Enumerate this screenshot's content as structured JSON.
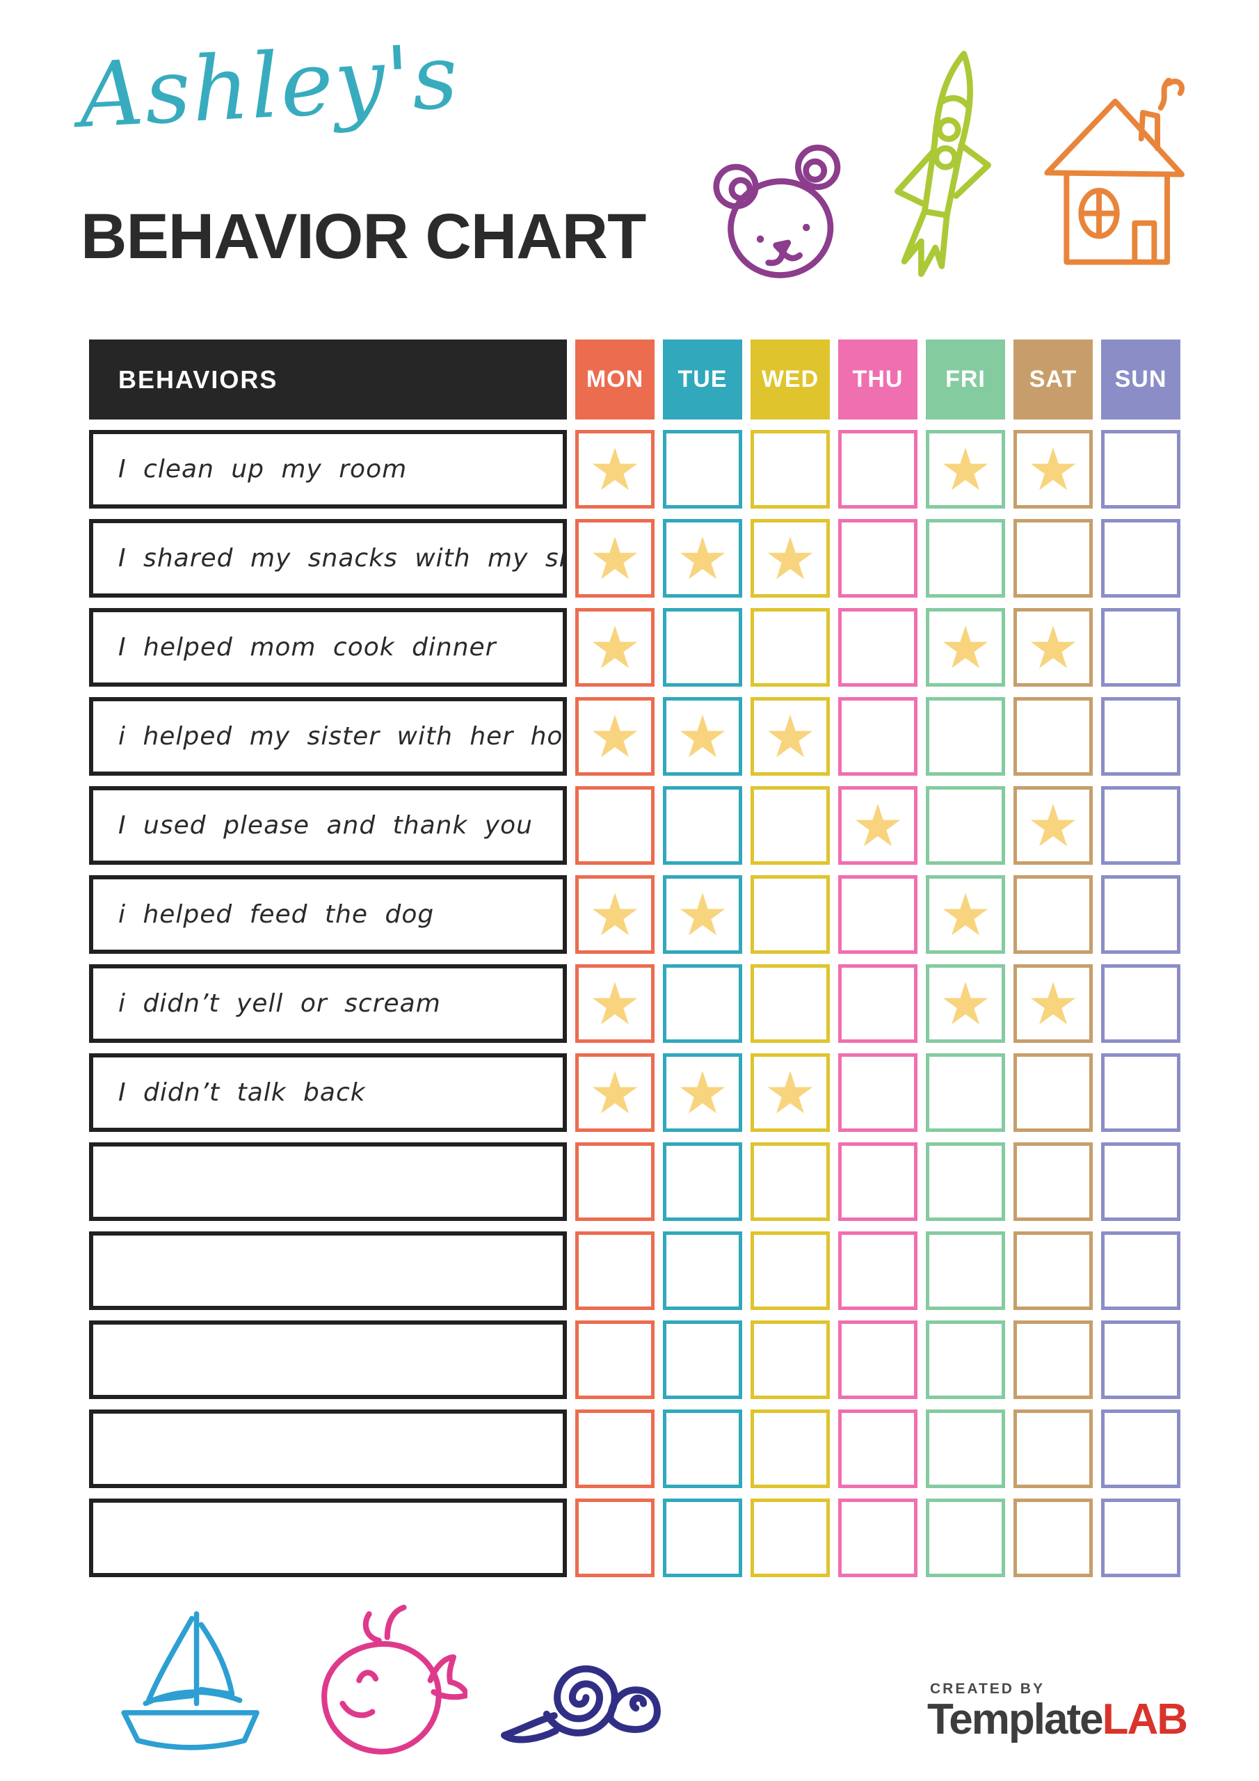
{
  "header": {
    "owner_name": "Ashley's",
    "title": "BEHAVIOR CHART"
  },
  "table": {
    "behaviors_header": "BEHAVIORS",
    "star_glyph": "★",
    "days": [
      {
        "label": "MON",
        "color": "#EC6C4F"
      },
      {
        "label": "TUE",
        "color": "#31A8BC"
      },
      {
        "label": "WED",
        "color": "#DFC42E"
      },
      {
        "label": "THU",
        "color": "#F06FB0"
      },
      {
        "label": "FRI",
        "color": "#85CBA0"
      },
      {
        "label": "SAT",
        "color": "#C79E6B"
      },
      {
        "label": "SUN",
        "color": "#8B8EC6"
      }
    ],
    "rows": [
      {
        "label": "I clean up my room",
        "stars": [
          1,
          0,
          0,
          0,
          1,
          1,
          0
        ]
      },
      {
        "label": "I shared my snacks with my sister",
        "stars": [
          1,
          1,
          1,
          0,
          0,
          0,
          0
        ]
      },
      {
        "label": "I helped mom cook dinner",
        "stars": [
          1,
          0,
          0,
          0,
          1,
          1,
          0
        ]
      },
      {
        "label": "i helped my sister with her homework",
        "stars": [
          1,
          1,
          1,
          0,
          0,
          0,
          0
        ]
      },
      {
        "label": "I used please and thank you",
        "stars": [
          0,
          0,
          0,
          1,
          0,
          1,
          0
        ]
      },
      {
        "label": "i helped feed the dog",
        "stars": [
          1,
          1,
          0,
          0,
          1,
          0,
          0
        ]
      },
      {
        "label": "i didn’t yell or scream",
        "stars": [
          1,
          0,
          0,
          0,
          1,
          1,
          0
        ]
      },
      {
        "label": "I didn’t talk back",
        "stars": [
          1,
          1,
          1,
          0,
          0,
          0,
          0
        ]
      },
      {
        "label": "",
        "stars": [
          0,
          0,
          0,
          0,
          0,
          0,
          0
        ]
      },
      {
        "label": "",
        "stars": [
          0,
          0,
          0,
          0,
          0,
          0,
          0
        ]
      },
      {
        "label": "",
        "stars": [
          0,
          0,
          0,
          0,
          0,
          0,
          0
        ]
      },
      {
        "label": "",
        "stars": [
          0,
          0,
          0,
          0,
          0,
          0,
          0
        ]
      },
      {
        "label": "",
        "stars": [
          0,
          0,
          0,
          0,
          0,
          0,
          0
        ]
      }
    ]
  },
  "footer": {
    "created_by": "CREATED BY",
    "brand_template": "Template",
    "brand_lab": "LAB"
  },
  "decor_icons": {
    "top": [
      "bear-icon",
      "rocket-icon",
      "house-icon"
    ],
    "bottom": [
      "sailboat-icon",
      "whale-icon",
      "snail-icon"
    ]
  },
  "colors": {
    "title_script": "#38ACBE",
    "title_main": "#2B2B2B",
    "header_bg": "#262626",
    "star": "#F8D47E",
    "bear": "#8C3D8C",
    "rocket": "#ABC936",
    "house": "#E8853B",
    "sailboat": "#2D9FD2",
    "whale": "#DE3A8C",
    "snail": "#312F85",
    "logo_template": "#3D3D3D",
    "logo_lab": "#D8342C"
  }
}
